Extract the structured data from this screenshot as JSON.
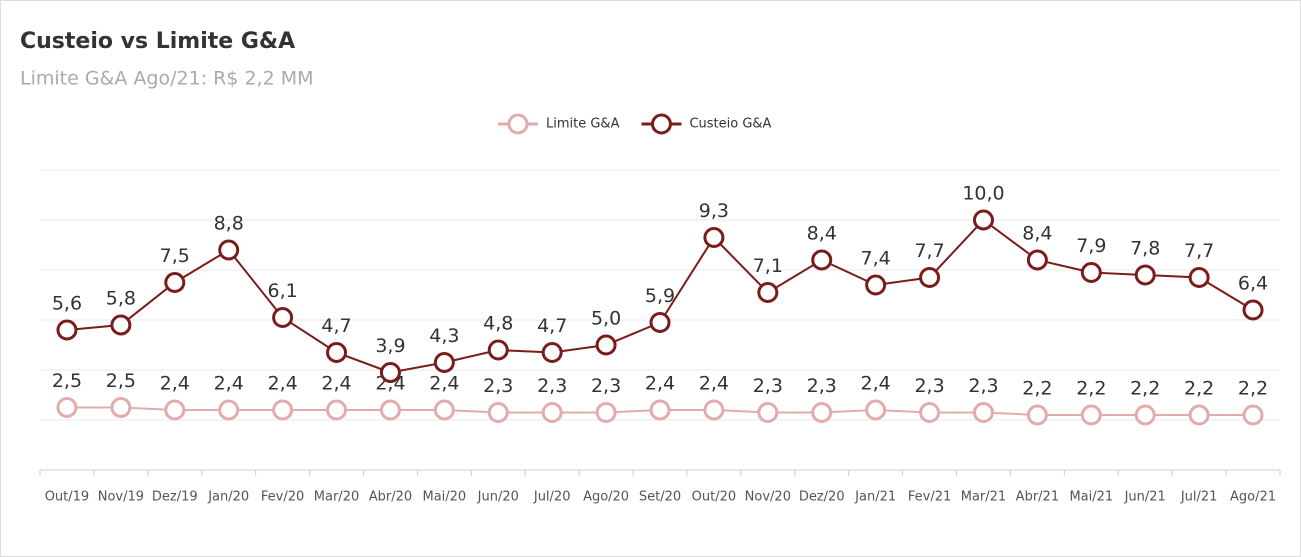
{
  "chart_data": {
    "type": "line",
    "title": "Custeio vs Limite G&A",
    "subtitle": "Limite G&A Ago/21: R$ 2,2 MM",
    "categories": [
      "Out/19",
      "Nov/19",
      "Dez/19",
      "Jan/20",
      "Fev/20",
      "Mar/20",
      "Abr/20",
      "Mai/20",
      "Jun/20",
      "Jul/20",
      "Ago/20",
      "Set/20",
      "Out/20",
      "Nov/20",
      "Dez/20",
      "Jan/21",
      "Fev/21",
      "Mar/21",
      "Abr/21",
      "Mai/21",
      "Jun/21",
      "Jul/21",
      "Ago/21"
    ],
    "series": [
      {
        "name": "Limite G&A",
        "color": "#e3abab",
        "values": [
          2.5,
          2.5,
          2.4,
          2.4,
          2.4,
          2.4,
          2.4,
          2.4,
          2.3,
          2.3,
          2.3,
          2.4,
          2.4,
          2.3,
          2.3,
          2.4,
          2.3,
          2.3,
          2.2,
          2.2,
          2.2,
          2.2,
          2.2
        ],
        "value_labels": [
          "2,5",
          "2,5",
          "2,4",
          "2,4",
          "2,4",
          "2,4",
          "2,4",
          "2,4",
          "2,3",
          "2,3",
          "2,3",
          "2,4",
          "2,4",
          "2,3",
          "2,3",
          "2,4",
          "2,3",
          "2,3",
          "2,2",
          "2,2",
          "2,2",
          "2,2",
          "2,2"
        ]
      },
      {
        "name": "Custeio G&A",
        "color": "#7b1c1c",
        "values": [
          5.6,
          5.8,
          7.5,
          8.8,
          6.1,
          4.7,
          3.9,
          4.3,
          4.8,
          4.7,
          5.0,
          5.9,
          9.3,
          7.1,
          8.4,
          7.4,
          7.7,
          10.0,
          8.4,
          7.9,
          7.8,
          7.7,
          6.4
        ],
        "value_labels": [
          "5,6",
          "5,8",
          "7,5",
          "8,8",
          "6,1",
          "4,7",
          "3,9",
          "4,3",
          "4,8",
          "4,7",
          "5,0",
          "5,9",
          "9,3",
          "7,1",
          "8,4",
          "7,4",
          "7,7",
          "10,0",
          "8,4",
          "7,9",
          "7,8",
          "7,7",
          "6,4"
        ]
      }
    ],
    "ylim": [
      0,
      12
    ],
    "yticks": [
      0,
      2,
      4,
      6,
      8,
      10,
      12
    ],
    "grid": true,
    "legend": "top"
  }
}
